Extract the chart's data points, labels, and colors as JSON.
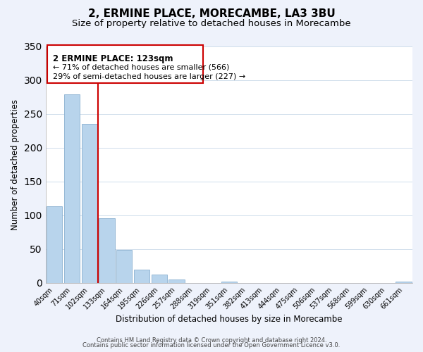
{
  "title": "2, ERMINE PLACE, MORECAMBE, LA3 3BU",
  "subtitle": "Size of property relative to detached houses in Morecambe",
  "bar_values": [
    113,
    279,
    235,
    95,
    49,
    19,
    12,
    5,
    0,
    0,
    2,
    0,
    0,
    0,
    0,
    0,
    0,
    0,
    0,
    0,
    2
  ],
  "bin_labels": [
    "40sqm",
    "71sqm",
    "102sqm",
    "133sqm",
    "164sqm",
    "195sqm",
    "226sqm",
    "257sqm",
    "288sqm",
    "319sqm",
    "351sqm",
    "382sqm",
    "413sqm",
    "444sqm",
    "475sqm",
    "506sqm",
    "537sqm",
    "568sqm",
    "599sqm",
    "630sqm",
    "661sqm"
  ],
  "bar_color": "#b8d4ec",
  "bar_edge_color": "#8ab0d0",
  "vline_x": 2.5,
  "vline_color": "#cc0000",
  "ylabel": "Number of detached properties",
  "xlabel": "Distribution of detached houses by size in Morecambe",
  "ylim": [
    0,
    350
  ],
  "yticks": [
    0,
    50,
    100,
    150,
    200,
    250,
    300,
    350
  ],
  "annotation_title": "2 ERMINE PLACE: 123sqm",
  "annotation_line1": "← 71% of detached houses are smaller (566)",
  "annotation_line2": "29% of semi-detached houses are larger (227) →",
  "footer1": "Contains HM Land Registry data © Crown copyright and database right 2024.",
  "footer2": "Contains public sector information licensed under the Open Government Licence v3.0.",
  "bg_color": "#eef2fb",
  "plot_bg_color": "#ffffff",
  "title_fontsize": 11,
  "subtitle_fontsize": 9.5
}
